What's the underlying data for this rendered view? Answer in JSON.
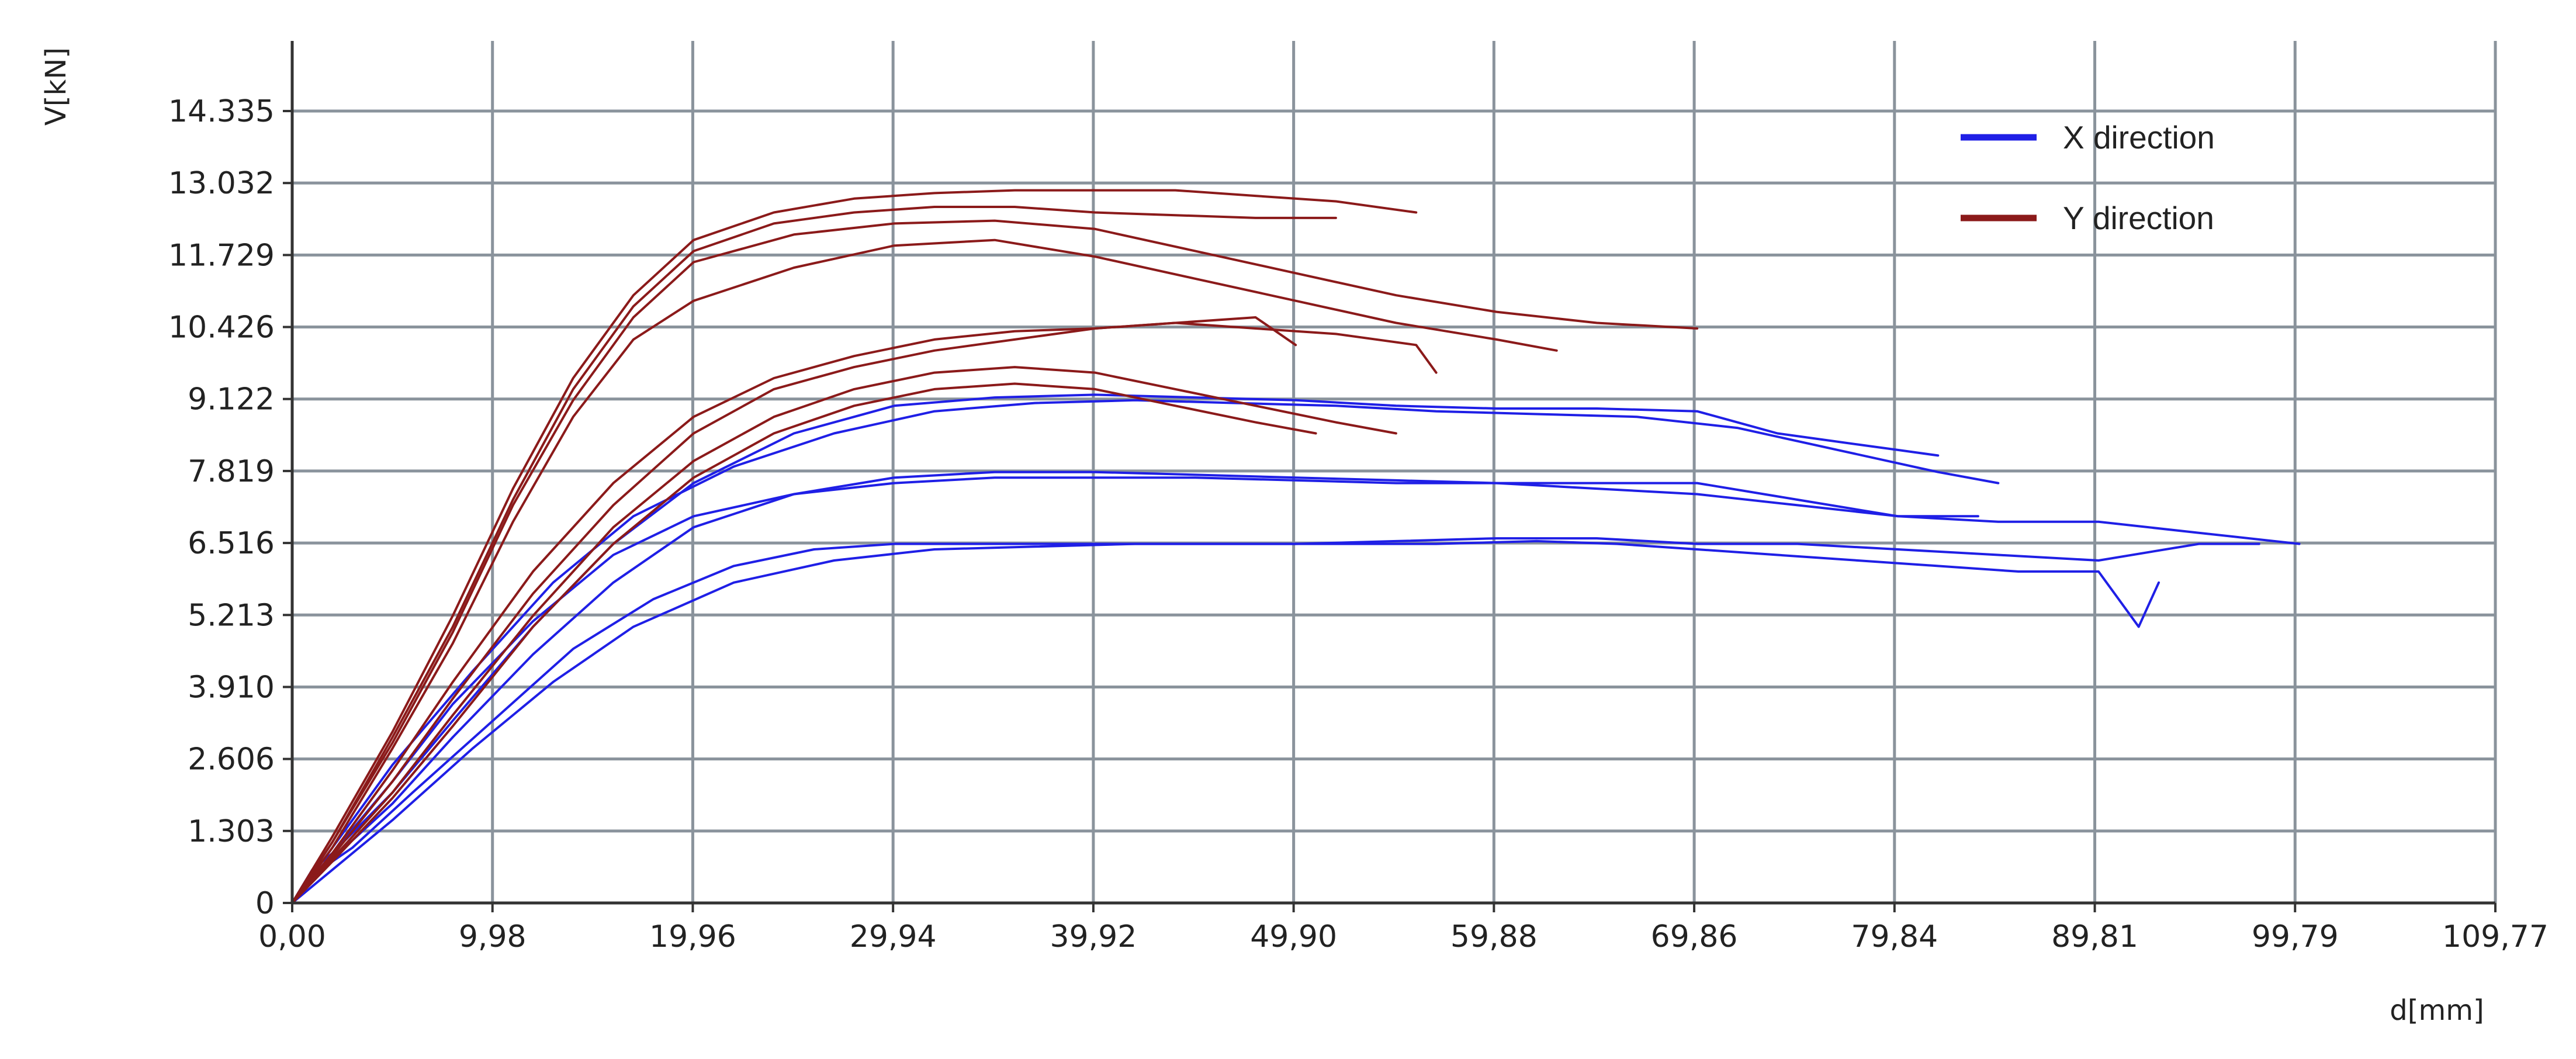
{
  "chart_data": {
    "type": "line",
    "title": "",
    "xlabel": "d[mm]",
    "ylabel": "V[kN]",
    "xlim": [
      0,
      109.77
    ],
    "ylim": [
      0,
      14.335
    ],
    "grid": true,
    "legend_position": "top-right",
    "x_ticks": [
      "0,00",
      "9,98",
      "19,96",
      "29,94",
      "39,92",
      "49,90",
      "59,88",
      "69,86",
      "79,84",
      "89,81",
      "99,79",
      "109,77"
    ],
    "y_ticks": [
      "0",
      "1.303",
      "2.606",
      "3.910",
      "5.213",
      "6.516",
      "7.819",
      "9.122",
      "10.426",
      "11.729",
      "13.032",
      "14.335"
    ],
    "colors": {
      "x_direction": "#1f1fe6",
      "y_direction": "#8b1a1a",
      "grid": "#8a939c",
      "axis": "#333333"
    },
    "series": [
      {
        "name": "X direction",
        "color": "#1f1fe6",
        "curves": [
          {
            "x": [
              0,
              1,
              2,
              5,
              8,
              12,
              16,
              20,
              25,
              30,
              35,
              40,
              45,
              50,
              55,
              60,
              65,
              70,
              72,
              74,
              76,
              78,
              80,
              82
            ],
            "y": [
              0,
              0.6,
              0.9,
              2.0,
              3.3,
              5.0,
              6.5,
              7.6,
              8.5,
              9.0,
              9.15,
              9.2,
              9.15,
              9.1,
              9.0,
              8.95,
              8.95,
              8.9,
              8.7,
              8.5,
              8.4,
              8.3,
              8.2,
              8.1
            ]
          },
          {
            "x": [
              0,
              1,
              2,
              5,
              8,
              12,
              16,
              20,
              25,
              30,
              35,
              40,
              45,
              50,
              55,
              60,
              65,
              70,
              75,
              80,
              84
            ],
            "y": [
              0,
              0.4,
              0.8,
              1.8,
              3.0,
              4.5,
              5.8,
              6.8,
              7.4,
              7.7,
              7.8,
              7.8,
              7.75,
              7.7,
              7.65,
              7.6,
              7.6,
              7.6,
              7.3,
              7.0,
              7.0
            ]
          },
          {
            "x": [
              0,
              1,
              3,
              6,
              10,
              14,
              18,
              22,
              26,
              30,
              35,
              40,
              45,
              50,
              55,
              60,
              65,
              70,
              75,
              80,
              85,
              90,
              95,
              98
            ],
            "y": [
              0,
              0.5,
              1.0,
              2.0,
              3.3,
              4.6,
              5.5,
              6.1,
              6.4,
              6.5,
              6.5,
              6.5,
              6.5,
              6.5,
              6.55,
              6.6,
              6.6,
              6.5,
              6.5,
              6.4,
              6.3,
              6.2,
              6.5,
              6.5
            ]
          },
          {
            "x": [
              0,
              2,
              5,
              9,
              13,
              17,
              22,
              27,
              32,
              37,
              42,
              47,
              52,
              57,
              62,
              66,
              70,
              74,
              78,
              82,
              86,
              90,
              92,
              93
            ],
            "y": [
              0,
              0.6,
              1.5,
              2.8,
              4.0,
              5.0,
              5.8,
              6.2,
              6.4,
              6.45,
              6.5,
              6.5,
              6.5,
              6.5,
              6.55,
              6.5,
              6.4,
              6.3,
              6.2,
              6.1,
              6.0,
              6.0,
              5.0,
              5.8
            ]
          },
          {
            "x": [
              0,
              2,
              5,
              8,
              12,
              16,
              20,
              25,
              30,
              35,
              40,
              45,
              50,
              55,
              60,
              65,
              70,
              75,
              80,
              85,
              90,
              95,
              100
            ],
            "y": [
              0,
              0.9,
              2.2,
              3.6,
              5.1,
              6.3,
              7.0,
              7.4,
              7.6,
              7.7,
              7.7,
              7.7,
              7.65,
              7.6,
              7.6,
              7.5,
              7.4,
              7.2,
              7.0,
              6.9,
              6.9,
              6.7,
              6.5
            ]
          },
          {
            "x": [
              0,
              2,
              5,
              9,
              13,
              17,
              22,
              27,
              32,
              37,
              42,
              47,
              52,
              57,
              62,
              67,
              72,
              77,
              82,
              85
            ],
            "y": [
              0,
              1.0,
              2.5,
              4.2,
              5.8,
              7.0,
              7.9,
              8.5,
              8.9,
              9.05,
              9.1,
              9.05,
              9.0,
              8.9,
              8.85,
              8.8,
              8.6,
              8.2,
              7.8,
              7.6
            ]
          }
        ]
      },
      {
        "name": "Y direction",
        "color": "#8b1a1a",
        "curves": [
          {
            "x": [
              0,
              2,
              5,
              8,
              11,
              14,
              17,
              20,
              24,
              28,
              32,
              36,
              40,
              44,
              48,
              52,
              56
            ],
            "y": [
              0,
              1.2,
              3.1,
              5.2,
              7.5,
              9.5,
              11.0,
              12.0,
              12.5,
              12.75,
              12.85,
              12.9,
              12.9,
              12.9,
              12.8,
              12.7,
              12.5
            ]
          },
          {
            "x": [
              0,
              2,
              5,
              8,
              11,
              14,
              17,
              20,
              24,
              28,
              32,
              36,
              40,
              44,
              48,
              52
            ],
            "y": [
              0,
              1.1,
              3.0,
              5.0,
              7.3,
              9.3,
              10.8,
              11.8,
              12.3,
              12.5,
              12.6,
              12.6,
              12.5,
              12.45,
              12.4,
              12.4
            ]
          },
          {
            "x": [
              0,
              2,
              5,
              8,
              11,
              14,
              17,
              20,
              25,
              30,
              35,
              40,
              45,
              50,
              55,
              60,
              65,
              70
            ],
            "y": [
              0,
              1.1,
              2.9,
              4.9,
              7.2,
              9.1,
              10.6,
              11.6,
              12.1,
              12.3,
              12.35,
              12.2,
              11.8,
              11.4,
              11.0,
              10.7,
              10.5,
              10.4
            ]
          },
          {
            "x": [
              0,
              2,
              5,
              8,
              11,
              14,
              17,
              20,
              25,
              30,
              35,
              40,
              45,
              50,
              55,
              60,
              63
            ],
            "y": [
              0,
              1.0,
              2.8,
              4.7,
              6.9,
              8.8,
              10.2,
              10.9,
              11.5,
              11.9,
              12.0,
              11.7,
              11.3,
              10.9,
              10.5,
              10.2,
              10.0
            ]
          },
          {
            "x": [
              0,
              2,
              5,
              8,
              12,
              16,
              20,
              24,
              28,
              32,
              36,
              40,
              44,
              48,
              52,
              56,
              57
            ],
            "y": [
              0,
              0.9,
              2.4,
              4.0,
              6.0,
              7.6,
              8.8,
              9.5,
              9.9,
              10.2,
              10.35,
              10.4,
              10.5,
              10.4,
              10.3,
              10.1,
              9.6
            ]
          },
          {
            "x": [
              0,
              2,
              5,
              8,
              12,
              16,
              20,
              24,
              28,
              32,
              36,
              40,
              44,
              48,
              50
            ],
            "y": [
              0,
              0.85,
              2.2,
              3.7,
              5.6,
              7.2,
              8.5,
              9.3,
              9.7,
              10.0,
              10.2,
              10.4,
              10.5,
              10.6,
              10.1
            ]
          },
          {
            "x": [
              0,
              2,
              5,
              8,
              12,
              16,
              20,
              24,
              28,
              32,
              36,
              40,
              44,
              48,
              52,
              55
            ],
            "y": [
              0,
              0.8,
              2.0,
              3.4,
              5.2,
              6.8,
              8.0,
              8.8,
              9.3,
              9.6,
              9.7,
              9.6,
              9.3,
              9.0,
              8.7,
              8.5
            ]
          },
          {
            "x": [
              0,
              2,
              5,
              8,
              12,
              16,
              20,
              24,
              28,
              32,
              36,
              40,
              44,
              48,
              51
            ],
            "y": [
              0,
              0.75,
              1.9,
              3.2,
              5.0,
              6.5,
              7.7,
              8.5,
              9.0,
              9.3,
              9.4,
              9.3,
              9.0,
              8.7,
              8.5
            ]
          }
        ]
      }
    ],
    "legend": [
      {
        "label": "X direction",
        "color": "#1f1fe6"
      },
      {
        "label": "Y direction",
        "color": "#8b1a1a"
      }
    ]
  }
}
